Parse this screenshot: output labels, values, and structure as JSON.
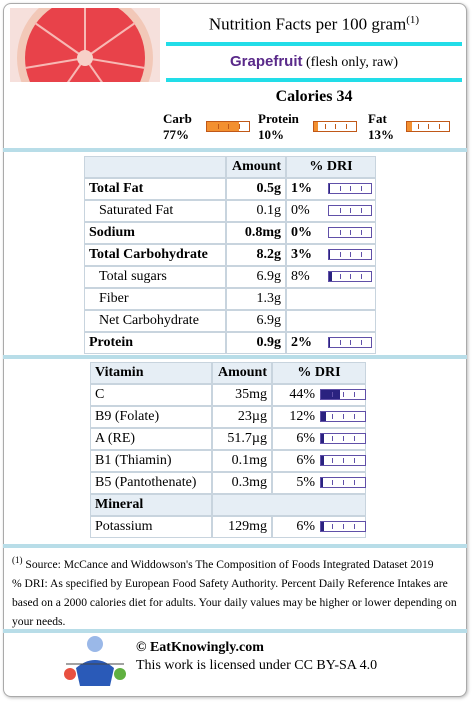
{
  "header": {
    "title": "Nutrition Facts per 100 gram",
    "title_note": "(1)",
    "food": "Grapefruit",
    "food_detail": "(flesh only, raw)"
  },
  "calories": "Calories 34",
  "macros": [
    {
      "name": "Carb",
      "percent": {
        "value": 77,
        "label": "77%"
      }
    },
    {
      "name": "Protein",
      "percent": {
        "value": 10,
        "label": "10%"
      }
    },
    {
      "name": "Fat",
      "percent": {
        "value": 13,
        "label": "13%"
      }
    }
  ],
  "nutrients": {
    "columns": [
      "Amount",
      "% DRI"
    ],
    "rows": [
      {
        "name": "Total Fat",
        "amount": "0.5g",
        "dri": {
          "value": 1,
          "label": "1%"
        },
        "bold": true
      },
      {
        "name": "Saturated Fat",
        "amount": "0.1g",
        "dri": {
          "value": 0,
          "label": "0%"
        },
        "bold": false
      },
      {
        "name": "Sodium",
        "amount": "0.8mg",
        "dri": {
          "value": 0,
          "label": "0%"
        },
        "bold": true
      },
      {
        "name": "Total Carbohydrate",
        "amount": "8.2g",
        "dri": {
          "value": 3,
          "label": "3%"
        },
        "bold": true
      },
      {
        "name": "Total sugars",
        "amount": "6.9g",
        "dri": {
          "value": 8,
          "label": "8%"
        },
        "bold": false
      },
      {
        "name": "Fiber",
        "amount": "1.3g",
        "bold": false
      },
      {
        "name": "Net Carbohydrate",
        "amount": "6.9g",
        "bold": false
      },
      {
        "name": "Protein",
        "amount": "0.9g",
        "dri": {
          "value": 2,
          "label": "2%"
        },
        "bold": true
      }
    ]
  },
  "vitamins": {
    "columns": [
      "Vitamin",
      "Amount",
      "% DRI"
    ],
    "rows": [
      {
        "name": "C",
        "amount": "35mg",
        "dri": {
          "value": 44,
          "label": "44%"
        }
      },
      {
        "name": "B9 (Folate)",
        "amount": "23µg",
        "dri": {
          "value": 12,
          "label": "12%"
        }
      },
      {
        "name": "A (RE)",
        "amount": "51.7µg",
        "dri": {
          "value": 6,
          "label": "6%"
        }
      },
      {
        "name": "B1 (Thiamin)",
        "amount": "0.1mg",
        "dri": {
          "value": 6,
          "label": "6%"
        }
      },
      {
        "name": "B5 (Pantothenate)",
        "amount": "0.3mg",
        "dri": {
          "value": 5,
          "label": "5%"
        }
      }
    ]
  },
  "minerals": {
    "title": "Mineral",
    "rows": [
      {
        "name": "Potassium",
        "amount": "129mg",
        "dri": {
          "value": 6,
          "label": "6%"
        }
      }
    ]
  },
  "footer": {
    "source_note": "(1)",
    "source": "Source: McCance and Widdowson's The Composition of Foods Integrated Dataset 2019",
    "dri_note": "% DRI: As specified by European Food Safety Authority. Percent Daily Reference Intakes are based on a 2000 calories diet for adults. Your daily values may be higher or lower depending on your needs.",
    "site": "© EatKnowingly.com",
    "license": "This work is licensed under CC BY-SA 4.0"
  }
}
